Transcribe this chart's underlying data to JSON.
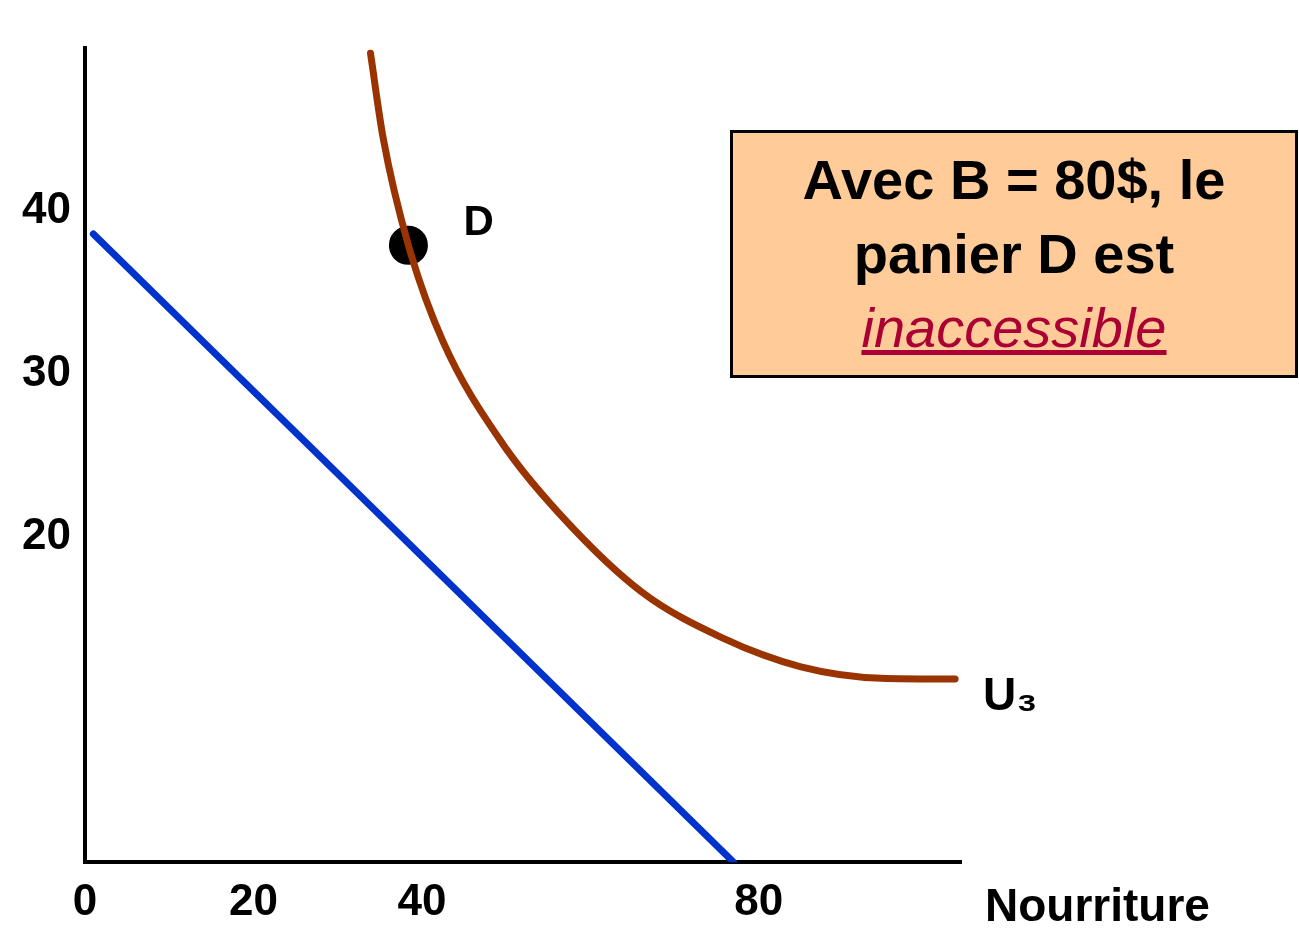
{
  "chart_data": {
    "type": "line",
    "xlabel": "Nourriture",
    "xlim": [
      0,
      104
    ],
    "xticks": [
      0,
      20,
      40,
      80
    ],
    "ylim": [
      0,
      50
    ],
    "yticks": [
      20,
      30,
      40
    ],
    "grid": false,
    "legend": false,
    "marker": "none",
    "line_style": "solid",
    "series": [
      {
        "type": "line",
        "color": "#0033cc",
        "x": [
          1,
          77
        ],
        "values": [
          38.6,
          0
        ]
      },
      {
        "type": "line",
        "name": "U₃",
        "color": "#993300",
        "x": [
          33.9,
          35.4,
          38.4,
          42.5,
          49.6,
          56.7,
          66.1,
          75.6,
          85,
          94.5,
          103.3
        ],
        "values": [
          49.7,
          44.5,
          37.9,
          32,
          25.7,
          21.2,
          16.6,
          13.8,
          12,
          11.3,
          11.25
        ]
      },
      {
        "type": "scatter",
        "color": "#000000",
        "marker": "circle",
        "x": [
          38.4
        ],
        "values": [
          37.9
        ]
      }
    ],
    "annotations": [
      {
        "text": "D",
        "x": 38.4,
        "y": 37.9
      },
      "Avec B = 80$, le panier D est",
      "inaccessible"
    ]
  }
}
